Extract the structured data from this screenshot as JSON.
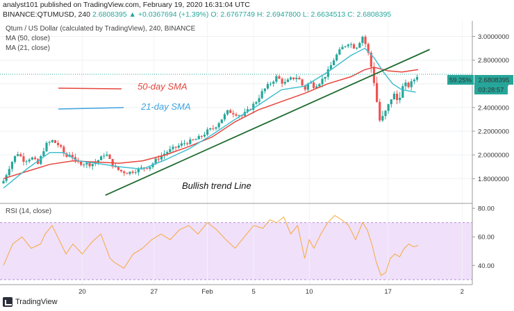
{
  "header": {
    "line1": "analyst101 published on TradingView.com, February 19, 2020 16:31:04 UTC",
    "symbol": "BINANCE:QTUMUSD, 240",
    "change": "2.6808395 ▲ +0.0367694 (+1.39%)",
    "ohlc": "O: 2.6767749 H: 2.6947800 L: 2.6634513 C: 2.6808395"
  },
  "legend": {
    "title": "Qtum / US Dollar (calculated by TradingView), 240, BINANCE",
    "ma50": "MA (50, close)",
    "ma21": "MA (21, close)",
    "rsi": "RSI (14, close)"
  },
  "annotations": {
    "sma50": "50-day SMA",
    "sma21": "21-day SMA",
    "trend": "Bullish trend Line"
  },
  "price_badge": {
    "pct": "59.25%",
    "price": "2.6808395",
    "countdown": "03:28:57"
  },
  "colors": {
    "up": "#26a69a",
    "down": "#ef5350",
    "ma50": "#e5453c",
    "ma21": "#3fbfd0",
    "trend": "#1e6b2f",
    "rsi": "#f6a93b",
    "rsi_band": "#f0e0fa",
    "badge": "#26a69a",
    "ma_badge": "#3ea3e0"
  },
  "footer": {
    "brand": "TradingView"
  },
  "chart_data": {
    "type": "candlestick",
    "price_axis": {
      "ylim": [
        1.62,
        3.12
      ],
      "ticks": [
        "3.0000000",
        "2.8000000",
        "2.6000000",
        "2.4000000",
        "2.2000000",
        "2.0000000",
        "1.8000000"
      ]
    },
    "rsi_axis": {
      "ylim": [
        28,
        82
      ],
      "ticks": [
        "80.00",
        "60.00",
        "40.00"
      ],
      "band": [
        30,
        70
      ]
    },
    "x_axis": {
      "domain": [
        0,
        100
      ],
      "ticks": [
        {
          "x": 17,
          "label": "20"
        },
        {
          "x": 32.5,
          "label": "27"
        },
        {
          "x": 44,
          "label": "Feb"
        },
        {
          "x": 54,
          "label": "5"
        },
        {
          "x": 66,
          "label": "10"
        },
        {
          "x": 83,
          "label": "17"
        },
        {
          "x": 99,
          "label": "2"
        }
      ]
    },
    "close_keys": [
      [
        0,
        1.78
      ],
      [
        1.5,
        1.92
      ],
      [
        3,
        2.02
      ],
      [
        4.5,
        1.95
      ],
      [
        6,
        1.98
      ],
      [
        7.5,
        1.92
      ],
      [
        9,
        2.08
      ],
      [
        10.5,
        2.12
      ],
      [
        12,
        2.08
      ],
      [
        13.5,
        1.98
      ],
      [
        14.5,
        2.02
      ],
      [
        15.5,
        1.94
      ],
      [
        17,
        1.93
      ],
      [
        19,
        1.92
      ],
      [
        21,
        1.97
      ],
      [
        22,
        2.02
      ],
      [
        23,
        1.95
      ],
      [
        24,
        1.89
      ],
      [
        25.5,
        1.86
      ],
      [
        27,
        1.85
      ],
      [
        28.5,
        1.87
      ],
      [
        30,
        1.89
      ],
      [
        31.5,
        1.9
      ],
      [
        33,
        1.96
      ],
      [
        35,
        2.02
      ],
      [
        37,
        2.06
      ],
      [
        39,
        2.1
      ],
      [
        41,
        2.12
      ],
      [
        42.5,
        2.15
      ],
      [
        44,
        2.2
      ],
      [
        45.5,
        2.23
      ],
      [
        47,
        2.3
      ],
      [
        48.5,
        2.37
      ],
      [
        50,
        2.35
      ],
      [
        51.5,
        2.33
      ],
      [
        53,
        2.38
      ],
      [
        54.5,
        2.45
      ],
      [
        56,
        2.54
      ],
      [
        57.5,
        2.6
      ],
      [
        59,
        2.66
      ],
      [
        60.5,
        2.6
      ],
      [
        62,
        2.64
      ],
      [
        63.5,
        2.66
      ],
      [
        65,
        2.55
      ],
      [
        66,
        2.62
      ],
      [
        67,
        2.58
      ],
      [
        68.5,
        2.62
      ],
      [
        70,
        2.7
      ],
      [
        71.5,
        2.82
      ],
      [
        73,
        2.9
      ],
      [
        74.5,
        2.95
      ],
      [
        76,
        2.9
      ],
      [
        77.5,
        3.0
      ],
      [
        78.5,
        2.9
      ],
      [
        79.5,
        2.72
      ],
      [
        80,
        2.62
      ],
      [
        80.6,
        2.45
      ],
      [
        81.3,
        2.27
      ],
      [
        82,
        2.32
      ],
      [
        83,
        2.4
      ],
      [
        84,
        2.52
      ],
      [
        85,
        2.46
      ],
      [
        85.8,
        2.54
      ],
      [
        86.5,
        2.6
      ],
      [
        87.5,
        2.58
      ],
      [
        88.5,
        2.63
      ],
      [
        89.5,
        2.68
      ]
    ],
    "ma50": [
      [
        0,
        1.8
      ],
      [
        5,
        1.86
      ],
      [
        10,
        1.92
      ],
      [
        15,
        1.95
      ],
      [
        20,
        1.94
      ],
      [
        25,
        1.93
      ],
      [
        30,
        1.95
      ],
      [
        35,
        2.0
      ],
      [
        40,
        2.07
      ],
      [
        45,
        2.15
      ],
      [
        50,
        2.28
      ],
      [
        55,
        2.38
      ],
      [
        60,
        2.45
      ],
      [
        65,
        2.52
      ],
      [
        70,
        2.6
      ],
      [
        75,
        2.66
      ],
      [
        78,
        2.72
      ],
      [
        80,
        2.74
      ],
      [
        83,
        2.71
      ],
      [
        86,
        2.7
      ],
      [
        89.5,
        2.72
      ]
    ],
    "ma21": [
      [
        0,
        1.72
      ],
      [
        5,
        1.88
      ],
      [
        10,
        2.02
      ],
      [
        13,
        2.02
      ],
      [
        16,
        1.95
      ],
      [
        20,
        1.93
      ],
      [
        25,
        1.9
      ],
      [
        30,
        1.88
      ],
      [
        35,
        1.96
      ],
      [
        40,
        2.05
      ],
      [
        45,
        2.17
      ],
      [
        50,
        2.3
      ],
      [
        55,
        2.42
      ],
      [
        60,
        2.55
      ],
      [
        65,
        2.58
      ],
      [
        70,
        2.7
      ],
      [
        75,
        2.84
      ],
      [
        78,
        2.9
      ],
      [
        80,
        2.82
      ],
      [
        82,
        2.7
      ],
      [
        84,
        2.6
      ],
      [
        86,
        2.55
      ],
      [
        89,
        2.53
      ]
    ],
    "trendline": [
      [
        22,
        1.66
      ],
      [
        92,
        2.89
      ]
    ],
    "rsi": [
      [
        0,
        40
      ],
      [
        2,
        55
      ],
      [
        4,
        60
      ],
      [
        6,
        52
      ],
      [
        8,
        55
      ],
      [
        9,
        62
      ],
      [
        10.5,
        68
      ],
      [
        12,
        58
      ],
      [
        13.5,
        48
      ],
      [
        15,
        55
      ],
      [
        17,
        48
      ],
      [
        19,
        56
      ],
      [
        21,
        62
      ],
      [
        23,
        45
      ],
      [
        24,
        42
      ],
      [
        26,
        38
      ],
      [
        28,
        48
      ],
      [
        30,
        52
      ],
      [
        32,
        58
      ],
      [
        34,
        62
      ],
      [
        36,
        58
      ],
      [
        38,
        65
      ],
      [
        40,
        68
      ],
      [
        42,
        62
      ],
      [
        44,
        70
      ],
      [
        46,
        65
      ],
      [
        48,
        58
      ],
      [
        50,
        52
      ],
      [
        52,
        60
      ],
      [
        54,
        68
      ],
      [
        56,
        66
      ],
      [
        57.5,
        72
      ],
      [
        59,
        70
      ],
      [
        60.5,
        74
      ],
      [
        62,
        62
      ],
      [
        63.5,
        68
      ],
      [
        65,
        45
      ],
      [
        66,
        58
      ],
      [
        67,
        52
      ],
      [
        68.5,
        62
      ],
      [
        70,
        70
      ],
      [
        71.5,
        75
      ],
      [
        73,
        72
      ],
      [
        74.5,
        68
      ],
      [
        76,
        58
      ],
      [
        77.5,
        70
      ],
      [
        78.5,
        65
      ],
      [
        79.5,
        55
      ],
      [
        80.5,
        42
      ],
      [
        81.5,
        33
      ],
      [
        82.5,
        35
      ],
      [
        83.5,
        45
      ],
      [
        84.5,
        48
      ],
      [
        85.5,
        46
      ],
      [
        86.5,
        52
      ],
      [
        87.5,
        55
      ],
      [
        88.5,
        53
      ],
      [
        89.5,
        54
      ]
    ]
  }
}
